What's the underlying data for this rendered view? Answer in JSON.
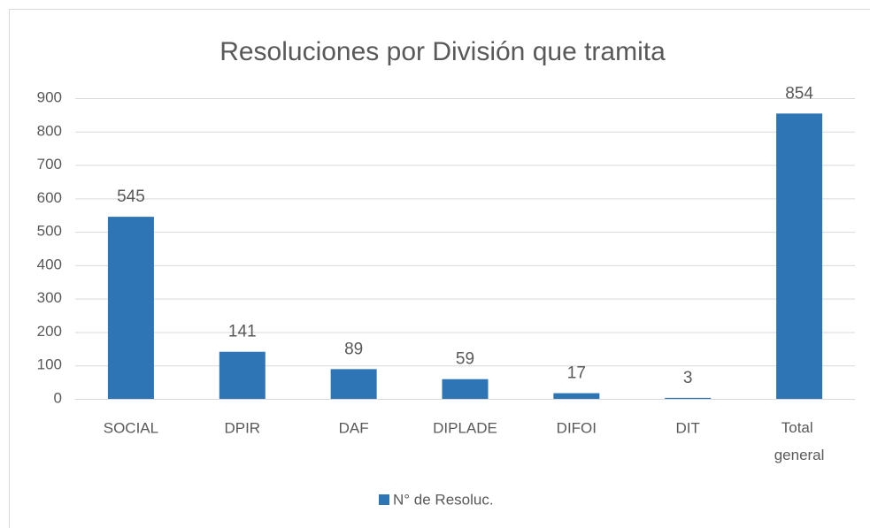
{
  "chart_data": {
    "type": "bar",
    "title": "Resoluciones por División que tramita",
    "categories": [
      "SOCIAL",
      "DPIR",
      "DAF",
      "DIPLADE",
      "DIFOI",
      "DIT",
      "Total general"
    ],
    "series": [
      {
        "name": "N° de Resoluc.",
        "color": "#2e75b6",
        "values": [
          545,
          141,
          89,
          59,
          17,
          3,
          854
        ]
      }
    ],
    "ylim": [
      0,
      900
    ],
    "yticks": [
      0,
      100,
      200,
      300,
      400,
      500,
      600,
      700,
      800,
      900
    ],
    "grid": true,
    "legend": "bottom",
    "data_labels": true
  }
}
